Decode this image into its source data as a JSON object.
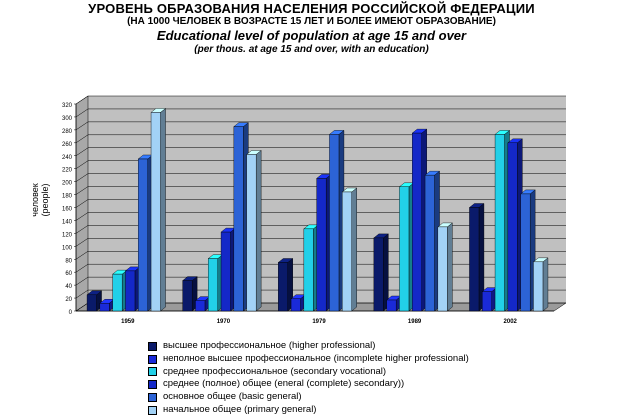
{
  "titles": {
    "main": "УРОВЕНЬ ОБРАЗОВАНИЯ НАСЕЛЕНИЯ РОССИЙСКОЙ ФЕДЕРАЦИИ",
    "sub": "(НА 1000 ЧЕЛОВЕК В ВОЗРАСТЕ 15 ЛЕТ И БОЛЕЕ ИМЕЮТ ОБРАЗОВАНИЕ)",
    "en_main": "Educational level of population at age 15 and over",
    "en_sub": "(per thous.  at age 15 and over, with an education)"
  },
  "chart_data": {
    "type": "bar",
    "ylabel_ru": "человек",
    "ylabel_en": "(people)",
    "ylim": [
      0,
      320
    ],
    "yticks": [
      0,
      20,
      40,
      60,
      80,
      100,
      120,
      140,
      160,
      180,
      200,
      220,
      240,
      260,
      280,
      300,
      320
    ],
    "grid": true,
    "legend_position": "bottom",
    "categories": [
      "1959",
      "1970",
      "1979",
      "1989",
      "2002"
    ],
    "series": [
      {
        "name": "высшее профессиональное (higher professional)",
        "color": "#0a1a6a",
        "values": [
          25,
          47,
          75,
          113,
          160
        ]
      },
      {
        "name": "неполное высшее профессиональное    (incomplete higher professional)",
        "color": "#1a2ad8",
        "values": [
          12,
          16,
          19,
          17,
          30
        ]
      },
      {
        "name": "среднее профессиональное   (secondary vocational)",
        "color": "#22d0e8",
        "values": [
          57,
          81,
          127,
          192,
          273
        ]
      },
      {
        "name": "среднее (полное) общее  (eneral (complete) secondary))",
        "color": "#1428c8",
        "values": [
          62,
          122,
          205,
          275,
          260
        ]
      },
      {
        "name": "основное общее (basic general)",
        "color": "#2c63d6",
        "values": [
          235,
          285,
          273,
          210,
          181
        ]
      },
      {
        "name": "начальное общее (primary general)",
        "color": "#a2d2f6",
        "values": [
          307,
          242,
          184,
          130,
          76
        ]
      }
    ]
  }
}
